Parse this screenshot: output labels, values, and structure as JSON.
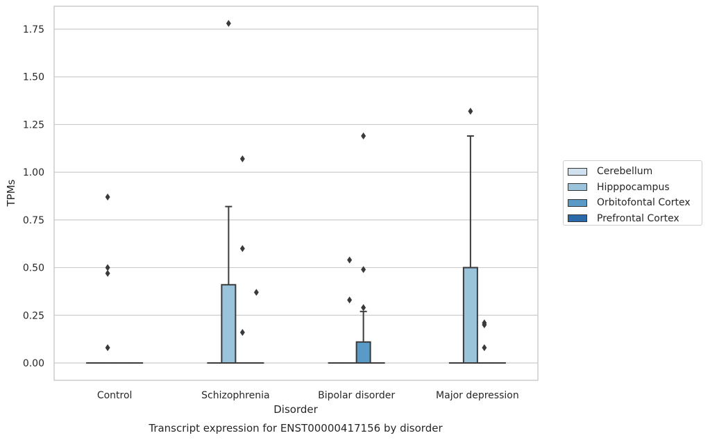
{
  "chart_data": {
    "type": "box",
    "title": "Transcript expression for ENST00000417156 by disorder",
    "xlabel": "Disorder",
    "ylabel": "TPMs",
    "ylim": [
      -0.09,
      1.87
    ],
    "yticks": [
      0.0,
      0.25,
      0.5,
      0.75,
      1.0,
      1.25,
      1.5,
      1.75
    ],
    "ytick_labels": [
      "0.00",
      "0.25",
      "0.50",
      "0.75",
      "1.00",
      "1.25",
      "1.50",
      "1.75"
    ],
    "categories": [
      "Control",
      "Schizophrenia",
      "Bipolar disorder",
      "Major depression"
    ],
    "grid": "horizontal",
    "legend_position": "right",
    "series": [
      {
        "name": "Cerebellum",
        "color": "#d1e1ef",
        "boxes": [
          {
            "q1": 0,
            "median": 0,
            "q3": 0,
            "whislo": 0,
            "whishi": 0,
            "fliers": []
          },
          {
            "q1": 0,
            "median": 0,
            "q3": 0,
            "whislo": 0,
            "whishi": 0,
            "fliers": []
          },
          {
            "q1": 0,
            "median": 0,
            "q3": 0,
            "whislo": 0,
            "whishi": 0,
            "fliers": []
          },
          {
            "q1": 0,
            "median": 0,
            "q3": 0,
            "whislo": 0,
            "whishi": 0,
            "fliers": []
          }
        ]
      },
      {
        "name": "Hipppocampus",
        "color": "#9ac3dc",
        "boxes": [
          {
            "q1": 0,
            "median": 0,
            "q3": 0,
            "whislo": 0,
            "whishi": 0,
            "fliers": [
              0.5,
              0.47,
              0.87,
              0.08
            ]
          },
          {
            "q1": 0,
            "median": 0,
            "q3": 0.41,
            "whislo": 0,
            "whishi": 0.82,
            "fliers": [
              1.78
            ]
          },
          {
            "q1": 0,
            "median": 0,
            "q3": 0,
            "whislo": 0,
            "whishi": 0,
            "fliers": [
              0.54,
              0.33
            ]
          },
          {
            "q1": 0,
            "median": 0,
            "q3": 0.5,
            "whislo": 0,
            "whishi": 1.19,
            "fliers": [
              1.32
            ]
          }
        ]
      },
      {
        "name": "Orbitofontal Cortex",
        "color": "#5a9ac6",
        "boxes": [
          {
            "q1": 0,
            "median": 0,
            "q3": 0,
            "whislo": 0,
            "whishi": 0,
            "fliers": []
          },
          {
            "q1": 0,
            "median": 0,
            "q3": 0,
            "whislo": 0,
            "whishi": 0,
            "fliers": [
              1.07,
              0.6,
              0.16
            ]
          },
          {
            "q1": 0,
            "median": 0,
            "q3": 0.11,
            "whislo": 0,
            "whishi": 0.27,
            "fliers": [
              0.49,
              0.29,
              1.19
            ]
          },
          {
            "q1": 0,
            "median": 0,
            "q3": 0,
            "whislo": 0,
            "whishi": 0,
            "fliers": [
              0.21,
              0.2,
              0.08
            ]
          }
        ]
      },
      {
        "name": "Prefrontal Cortex",
        "color": "#2a6aa8",
        "boxes": [
          {
            "q1": 0,
            "median": 0,
            "q3": 0,
            "whislo": 0,
            "whishi": 0,
            "fliers": []
          },
          {
            "q1": 0,
            "median": 0,
            "q3": 0,
            "whislo": 0,
            "whishi": 0,
            "fliers": [
              0.37
            ]
          },
          {
            "q1": 0,
            "median": 0,
            "q3": 0,
            "whislo": 0,
            "whishi": 0,
            "fliers": []
          },
          {
            "q1": 0,
            "median": 0,
            "q3": 0,
            "whislo": 0,
            "whishi": 0,
            "fliers": []
          }
        ]
      }
    ]
  }
}
